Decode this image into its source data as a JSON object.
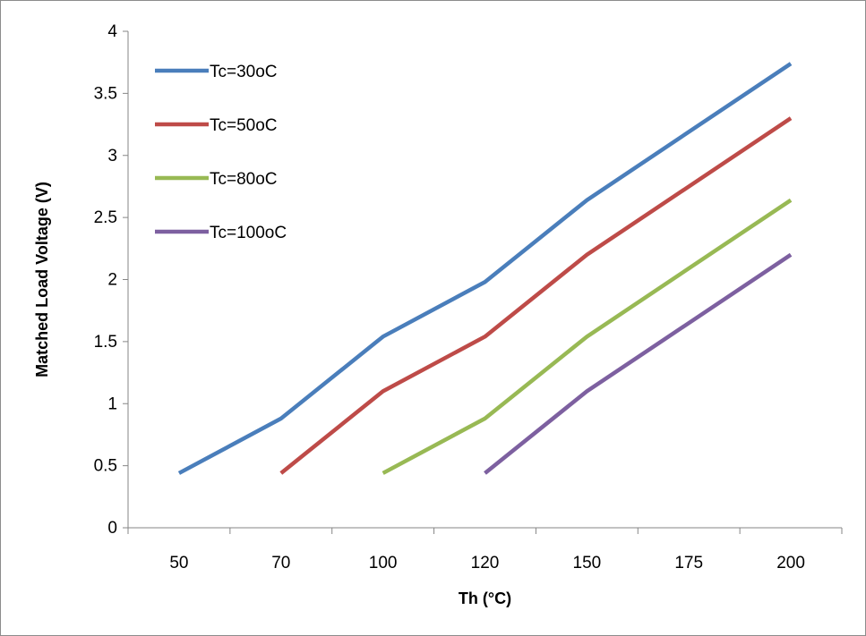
{
  "chart_data": {
    "type": "line",
    "categories": [
      "50",
      "70",
      "100",
      "120",
      "150",
      "175",
      "200"
    ],
    "series": [
      {
        "name": "Tc=30oC",
        "color": "#4a7ebb",
        "values": [
          0.44,
          0.88,
          1.54,
          1.98,
          2.64,
          null,
          3.74
        ]
      },
      {
        "name": "Tc=50oC",
        "color": "#be4b48",
        "values": [
          null,
          0.44,
          1.1,
          1.54,
          2.2,
          null,
          3.3
        ]
      },
      {
        "name": "Tc=80oC",
        "color": "#98b954",
        "values": [
          null,
          null,
          0.44,
          0.88,
          1.54,
          null,
          2.64
        ]
      },
      {
        "name": "Tc=100oC",
        "color": "#7d60a0",
        "values": [
          null,
          null,
          null,
          0.44,
          1.1,
          null,
          2.2
        ]
      }
    ],
    "xlabel": "Th (°C)",
    "ylabel": "Matched Load Voltage (V)",
    "ylim": [
      0,
      4
    ],
    "yticks": [
      "0",
      "0.5",
      "1",
      "1.5",
      "2",
      "2.5",
      "3",
      "3.5",
      "4"
    ],
    "grid": false,
    "legend_position": "top-left"
  }
}
